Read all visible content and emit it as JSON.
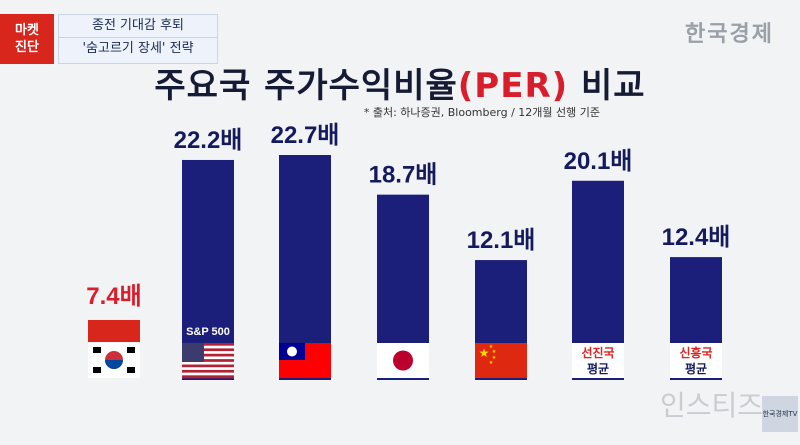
{
  "badge": {
    "line1": "마켓",
    "line2": "진단"
  },
  "topic": {
    "line1": "종전 기대감 후퇴",
    "line2": "'숨고르기 장세' 전략"
  },
  "brand": "한국경제",
  "title": {
    "main": "주요국 주가수익비율",
    "highlight": "(PER)",
    "suffix": " 비교"
  },
  "source": "* 출처: 하나증권, Bloomberg / 12개월 선행 기준",
  "watermark": "인스티즈",
  "tv_logo": "한국경제TV",
  "colors": {
    "bar": "#1c1f7a",
    "highlight_label": "#d81e2a",
    "label": "#141a5e",
    "avg_red": "#e0231e"
  },
  "chart_data": {
    "type": "bar",
    "title": "주요국 주가수익비율(PER) 비교",
    "categories": [
      "한국",
      "미국",
      "대만",
      "일본",
      "중국",
      "선진국 평균",
      "신흥국 평균"
    ],
    "values": [
      7.4,
      22.2,
      22.7,
      18.7,
      12.1,
      20.1,
      12.4
    ],
    "unit": "배",
    "data_labels": [
      "7.4배",
      "22.2배",
      "22.7배",
      "18.7배",
      "12.1배",
      "20.1배",
      "12.4배"
    ],
    "highlight_index": 0,
    "icons": [
      "korea-flag",
      "usa-flag",
      "taiwan-flag",
      "japan-flag",
      "china-flag",
      "developed-avg-box",
      "emerging-avg-box"
    ],
    "flag_captions": {
      "1": "S&P 500"
    },
    "avg_box_labels": [
      {
        "index": 5,
        "line1": "선진국",
        "line2": "평균"
      },
      {
        "index": 6,
        "line1": "신흥국",
        "line2": "평균"
      }
    ]
  }
}
